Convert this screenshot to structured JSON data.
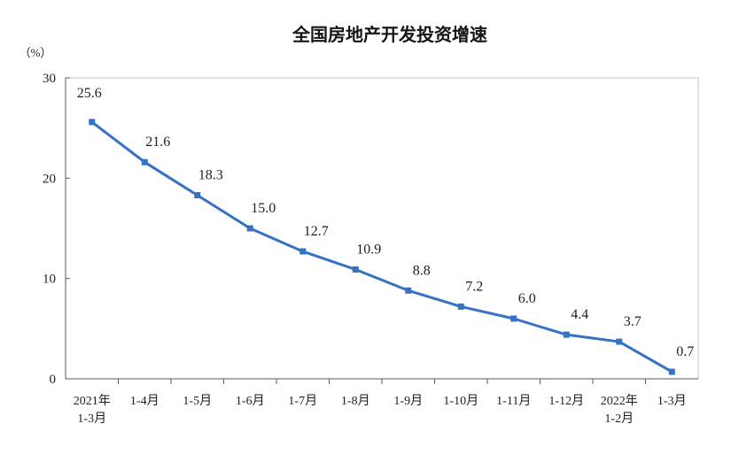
{
  "chart_data": {
    "type": "line",
    "title": "全国房地产开发投资增速",
    "ylabel": "（%）",
    "categories": [
      "2021年\n1-3月",
      "1-4月",
      "1-5月",
      "1-6月",
      "1-7月",
      "1-8月",
      "1-9月",
      "1-10月",
      "1-11月",
      "1-12月",
      "2022年\n1-2月",
      "1-3月"
    ],
    "series": [
      {
        "values": [
          25.6,
          21.6,
          18.3,
          15.0,
          12.7,
          10.9,
          8.8,
          7.2,
          6.0,
          4.4,
          3.7,
          0.7
        ],
        "color": "#3572C3"
      }
    ],
    "ylim": [
      0,
      30
    ],
    "yticks": [
      0,
      10,
      20,
      30
    ],
    "grid": false,
    "legend": "none",
    "data_labels": true
  }
}
